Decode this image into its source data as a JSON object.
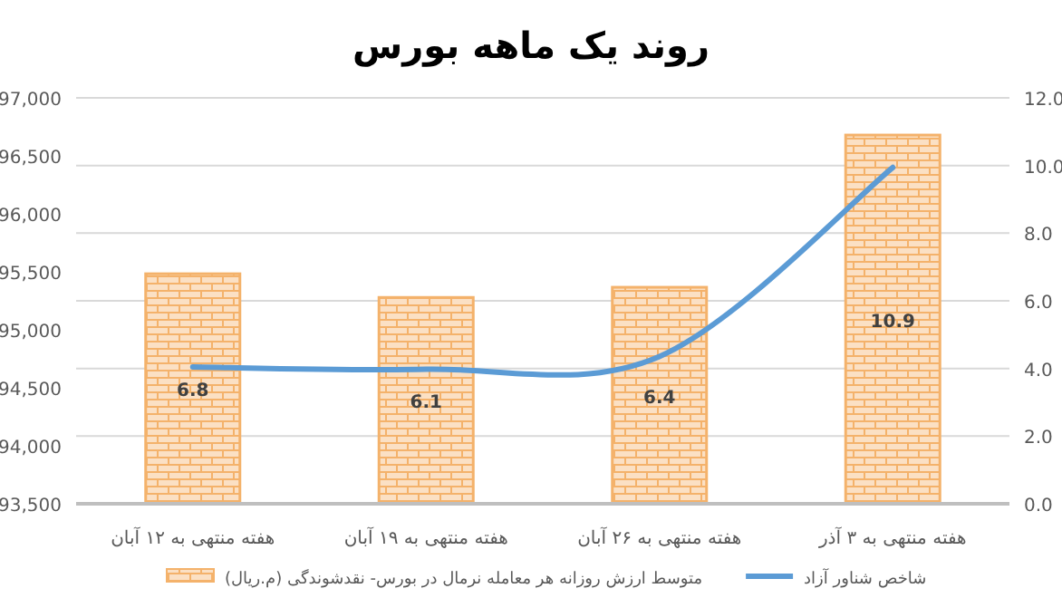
{
  "chart_data": {
    "type": "bar",
    "title": "روند یک ماهه بورس",
    "categories": [
      "هفته منتهی به ۱۲ آبان",
      "هفته منتهی به ۱۹ آبان",
      "هفته منتهی به ۲۶ آبان",
      "هفته منتهی به ۳ آذر"
    ],
    "series": [
      {
        "name": "متوسط ارزش روزانه هر معامله نرمال در بورس- نقدشوندگی (م.ریال)",
        "axis": "y2",
        "color": "#f4b26b",
        "values": [
          6.8,
          6.1,
          6.4,
          10.9
        ],
        "value_labels": [
          "6.8",
          "6.1",
          "6.4",
          "10.9"
        ]
      },
      {
        "name": "شاخص شناور آزاد",
        "type": "line",
        "axis": "y",
        "color": "#5b9bd5",
        "values": [
          94680,
          94660,
          94770,
          96400
        ]
      }
    ],
    "ylim": [
      93500,
      97000
    ],
    "yticks": [
      {
        "value": 93500,
        "label": "93,500"
      },
      {
        "value": 94000,
        "label": "94,000"
      },
      {
        "value": 94500,
        "label": "94,500"
      },
      {
        "value": 95000,
        "label": "95,000"
      },
      {
        "value": 95500,
        "label": "95,500"
      },
      {
        "value": 96000,
        "label": "96,000"
      },
      {
        "value": 96500,
        "label": "96,500"
      },
      {
        "value": 97000,
        "label": "97,000"
      }
    ],
    "y2lim": [
      0,
      12
    ],
    "y2ticks": [
      {
        "value": 0,
        "label": "0.0"
      },
      {
        "value": 2,
        "label": "2.0"
      },
      {
        "value": 4,
        "label": "4.0"
      },
      {
        "value": 6,
        "label": "6.0"
      },
      {
        "value": 8,
        "label": "8.0"
      },
      {
        "value": 10,
        "label": "10.0"
      },
      {
        "value": 12,
        "label": "12.0"
      }
    ],
    "grid": "y2",
    "legend": "bottom",
    "marker": "none",
    "line_style": "solid"
  }
}
